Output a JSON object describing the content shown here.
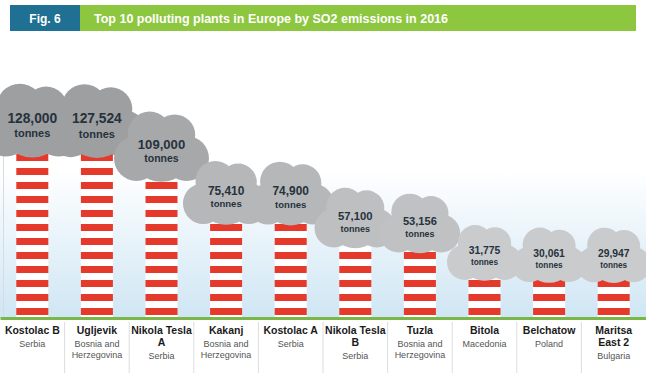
{
  "chart_data": {
    "type": "bar",
    "figure_label": "Fig. 6",
    "title": "Top 10 polluting plants in Europe by SO2 emissions in 2016",
    "categories": [
      "Kostolac B",
      "Ugljevik",
      "Nikola Tesla A",
      "Kakanj",
      "Kostolac A",
      "Nikola Tesla B",
      "Tuzla",
      "Bitola",
      "Belchatow",
      "Maritsa East 2"
    ],
    "countries": [
      "Serbia",
      "Bosnia and Herzegovina",
      "Serbia",
      "Bosnia and Herzegovina",
      "Serbia",
      "Serbia",
      "Bosnia and Herzegovina",
      "Macedonia",
      "Poland",
      "Bulgaria"
    ],
    "values": [
      128000,
      127524,
      109000,
      75410,
      74900,
      57100,
      53156,
      31775,
      30061,
      29947
    ],
    "value_labels": [
      "128,000 tonnes",
      "127,524 tonnes",
      "109,000 tonnes",
      "75,410 tonnes",
      "74,900 tonnes",
      "57,100 tonnes",
      "53,156 tonnes",
      "31,775 tonnes",
      "30,061 tonnes",
      "29,947 tonnes"
    ],
    "color": "#e5392b",
    "ylim": [
      0,
      130000
    ],
    "yticks": [],
    "tick_labels": false,
    "data_labels": true,
    "grid": false
  }
}
